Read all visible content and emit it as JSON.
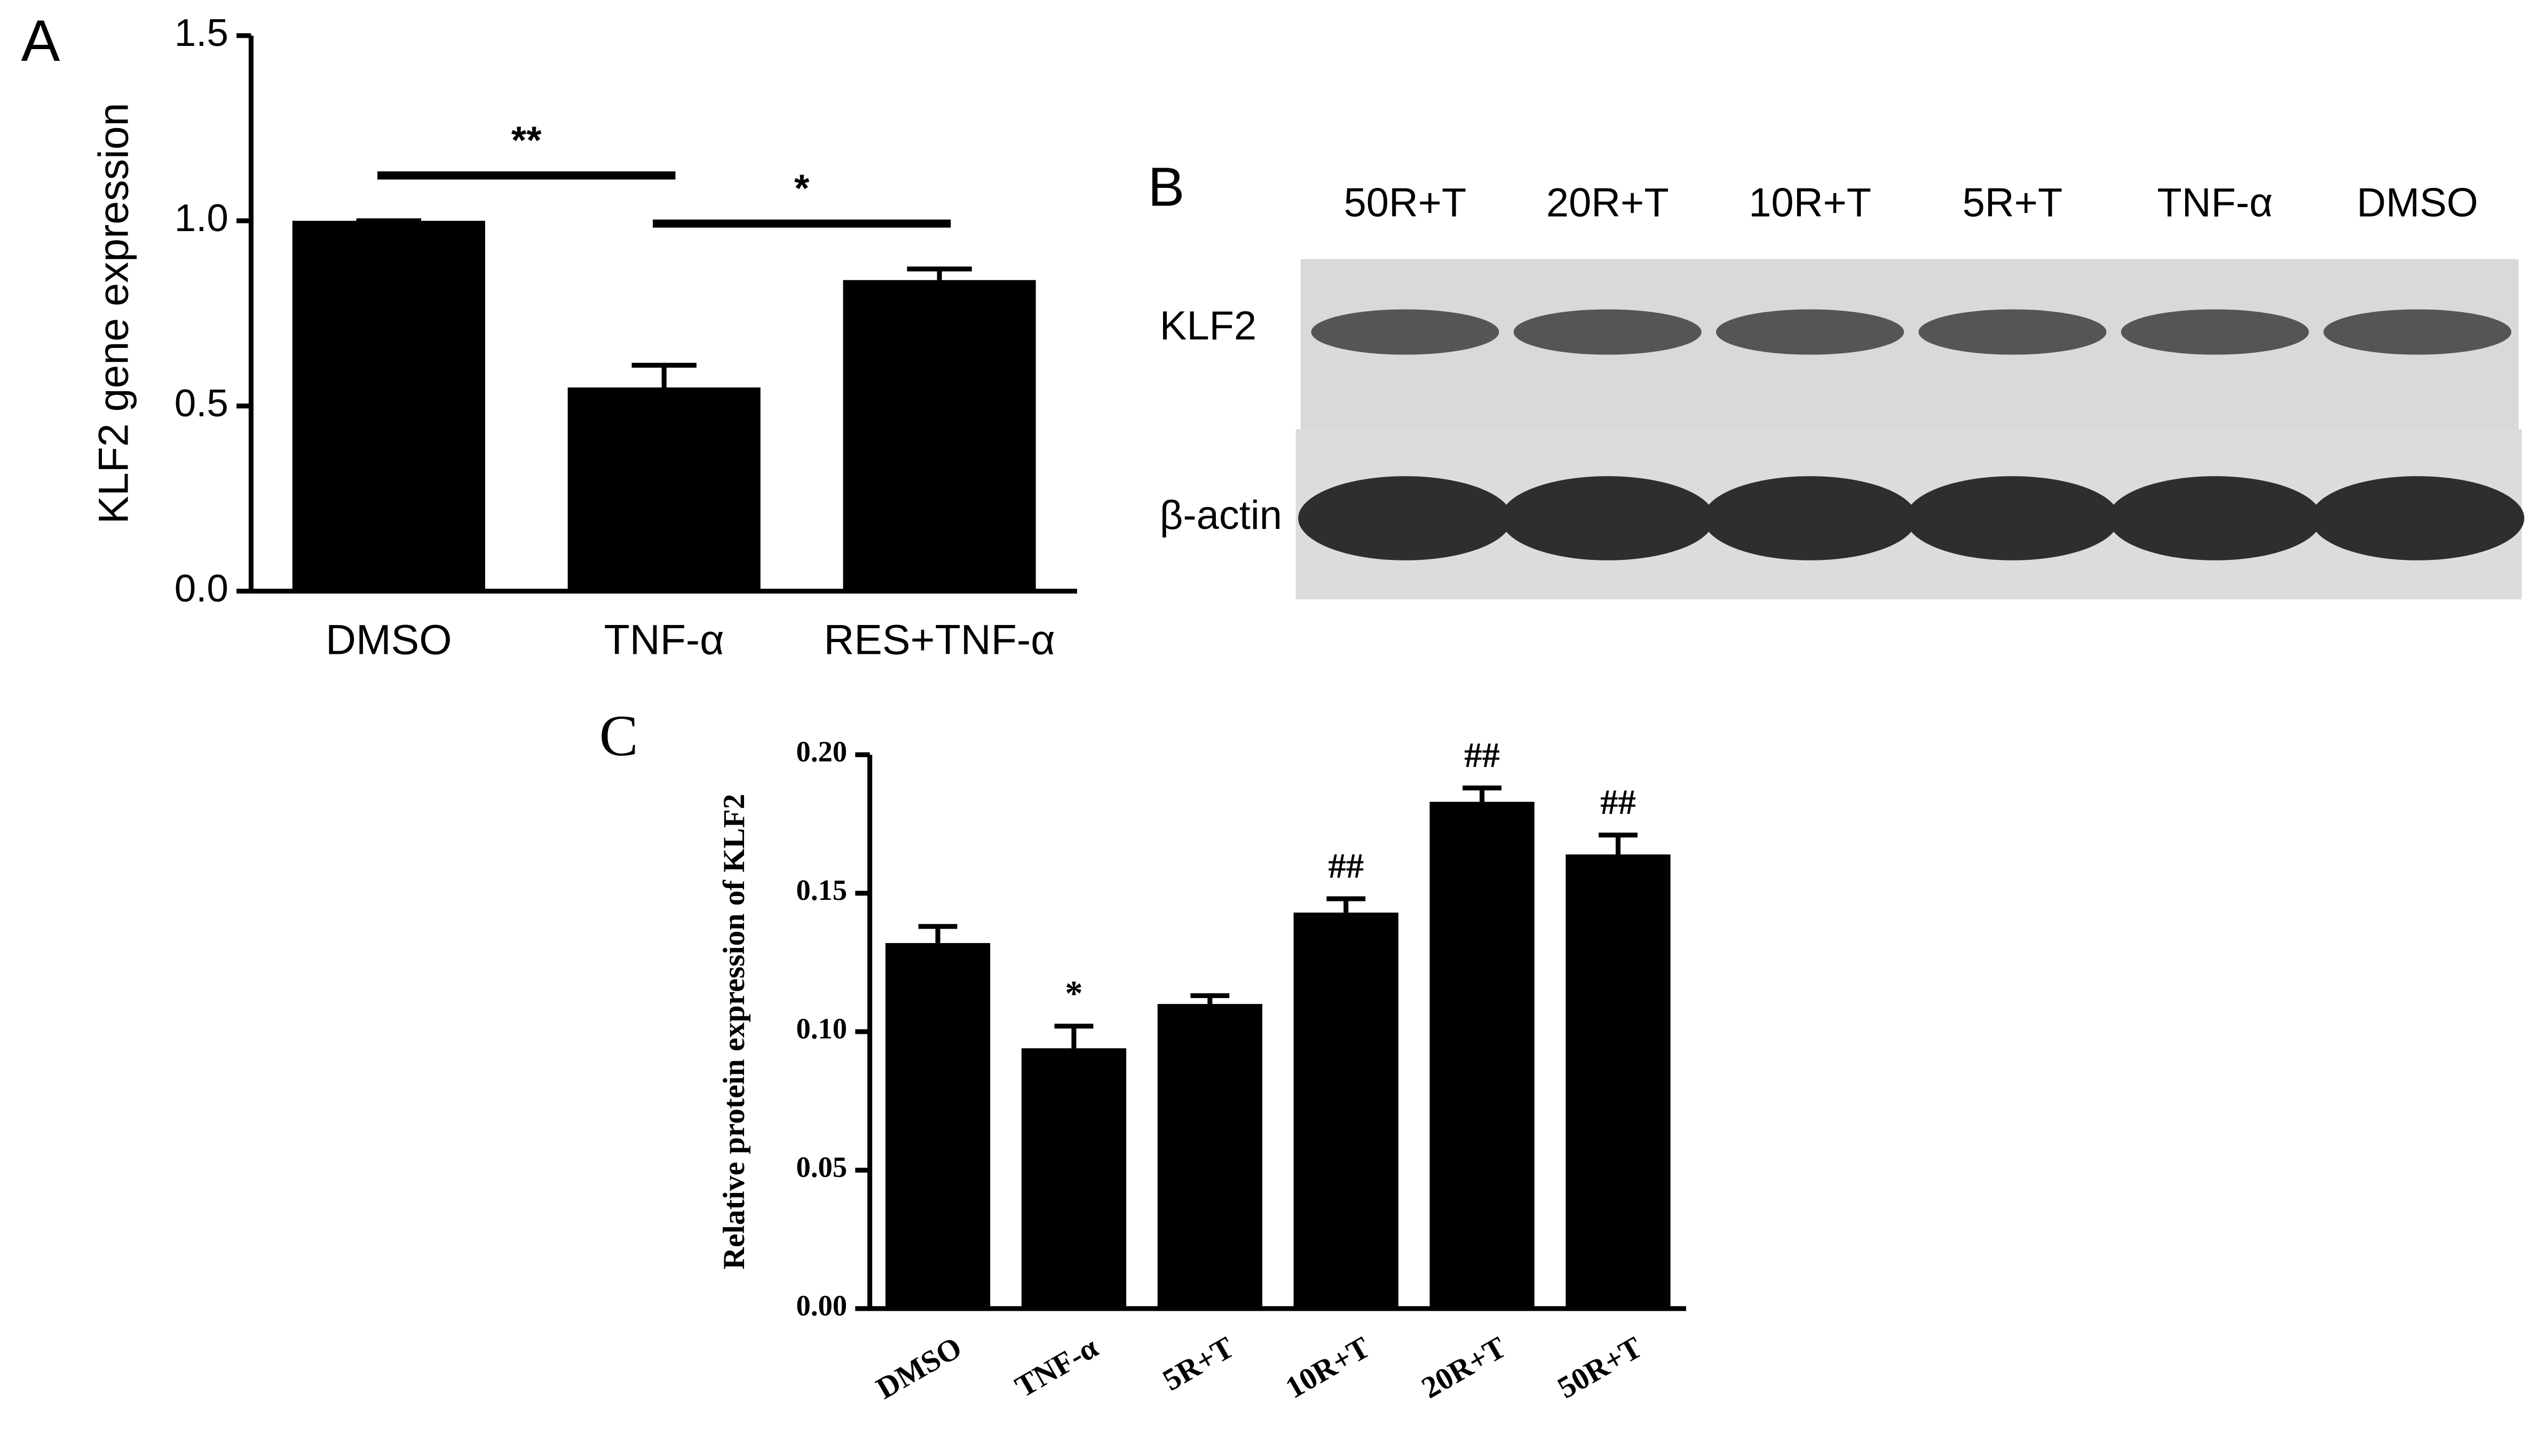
{
  "chart_data": [
    {
      "type": "bar",
      "panel_label": "A",
      "ylabel": "KLF2 gene expression",
      "categories": [
        "DMSO",
        "TNF-α",
        "RES+TNF-α"
      ],
      "values": [
        1.0,
        0.55,
        0.84
      ],
      "errors": [
        0,
        0.06,
        0.03
      ],
      "color": "#000000",
      "ylim": [
        0,
        1.5
      ],
      "yticks": [
        {
          "value": 0,
          "label": "0.0"
        },
        {
          "value": 0.5,
          "label": "0.5"
        },
        {
          "value": 1,
          "label": "1.0"
        },
        {
          "value": 1.5,
          "label": "1.5"
        }
      ],
      "comparisons": [
        {
          "label": "**",
          "pair": [
            0,
            1
          ]
        },
        {
          "label": "*",
          "pair": [
            1,
            2
          ]
        }
      ]
    },
    {
      "type": "bar",
      "panel_label": "C",
      "ylabel": "Relative protein expression of KLF2",
      "categories": [
        "DMSO",
        "TNF-α",
        "5R+T",
        "10R+T",
        "20R+T",
        "50R+T"
      ],
      "values": [
        0.132,
        0.094,
        0.11,
        0.143,
        0.183,
        0.164
      ],
      "errors": [
        0.006,
        0.008,
        0.003,
        0.005,
        0.005,
        0.007
      ],
      "color": "#000000",
      "significance": [
        null,
        "*",
        null,
        "##",
        "##",
        "##"
      ],
      "ylim": [
        0,
        0.2
      ],
      "yticks": [
        {
          "value": 0,
          "label": "0.00"
        },
        {
          "value": 0.05,
          "label": "0.05"
        },
        {
          "value": 0.1,
          "label": "0.10"
        },
        {
          "value": 0.15,
          "label": "0.15"
        },
        {
          "value": 0.2,
          "label": "0.20"
        }
      ]
    }
  ],
  "blot": {
    "panel_label": "B",
    "lanes": [
      "50R+T",
      "20R+T",
      "10R+T",
      "5R+T",
      "TNF-α",
      "DMSO"
    ],
    "rows": [
      "KLF2",
      "β-actin"
    ]
  }
}
